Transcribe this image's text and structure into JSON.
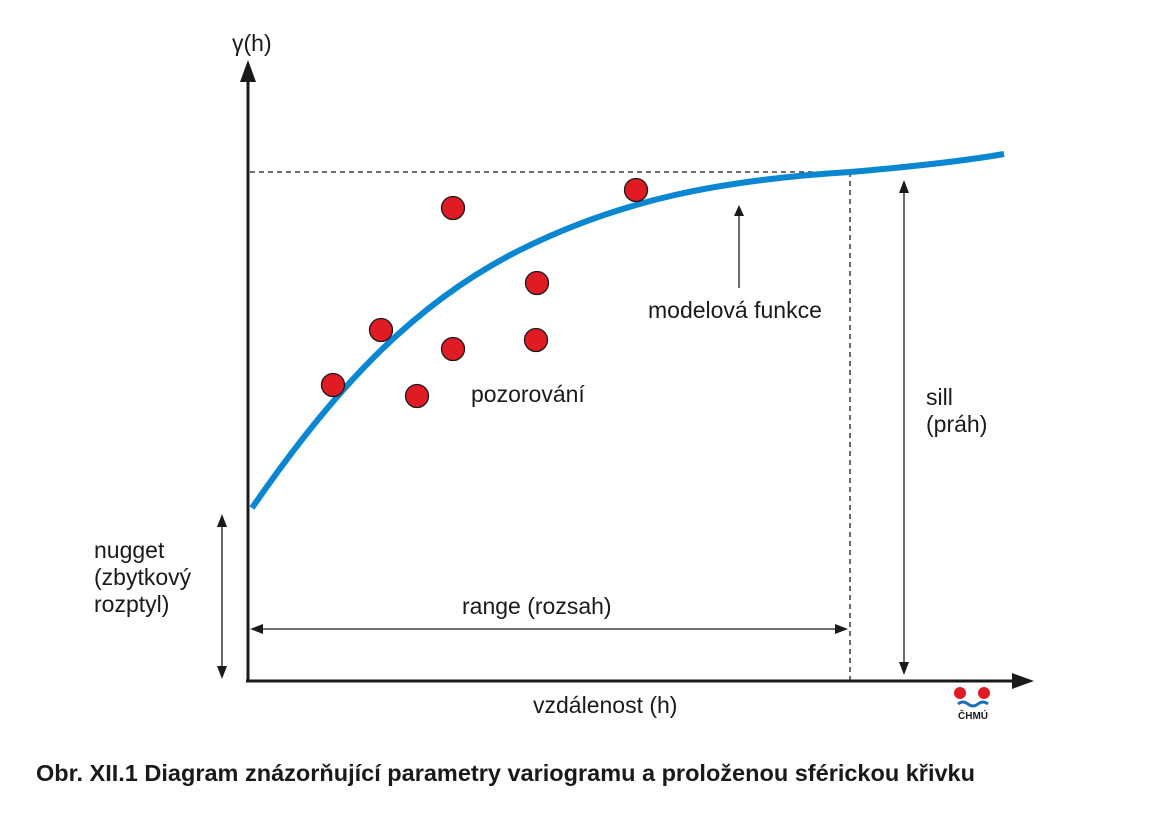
{
  "diagram": {
    "y_axis_label": "γ(h)",
    "x_axis_label": "vzdálenost (h)",
    "model_label": "modelová funkce",
    "observations_label": "pozorování",
    "sill_label": [
      "sill",
      "(práh)"
    ],
    "nugget_label": [
      "nugget",
      "(zbytkový",
      "rozptyl)"
    ],
    "range_label": "range (rozsah)",
    "curve_color": "#0a87d0",
    "point_color": "#e01b24",
    "observations_count": 8
  },
  "logo": {
    "text": "ČHMÚ",
    "icon": "chmu-logo-icon"
  },
  "caption": "Obr. XII.1  Diagram znázorňující parametry variogramu a proloženou sférickou křivku"
}
